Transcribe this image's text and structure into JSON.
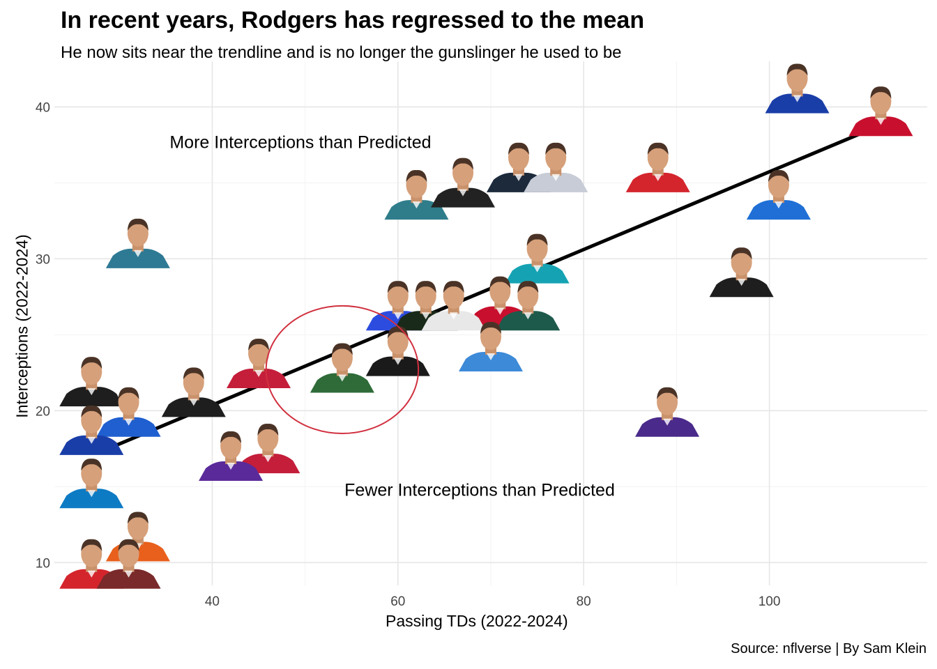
{
  "header": {
    "title": "In recent years, Rodgers has regressed to the mean",
    "subtitle": "He now sits near the trendline and is no longer the gunslinger he used to be"
  },
  "caption": "Source: nflverse | By Sam Klein",
  "chart_data": {
    "type": "scatter",
    "title": "In recent years, Rodgers has regressed to the mean",
    "subtitle": "He now sits near the trendline and is no longer the gunslinger he used to be",
    "xlabel": "Passing TDs (2022-2024)",
    "ylabel": "Interceptions (2022-2024)",
    "xlim": [
      23,
      117
    ],
    "ylim": [
      8.5,
      43
    ],
    "x_ticks": [
      40,
      60,
      80,
      100
    ],
    "y_ticks": [
      10,
      20,
      30,
      40
    ],
    "grid": true,
    "marker": "player headshot images",
    "points": [
      {
        "x": 103,
        "y": 40.5,
        "jersey": "#1a3ea8",
        "highlight": false
      },
      {
        "x": 112,
        "y": 39.0,
        "jersey": "#c8102e",
        "highlight": false
      },
      {
        "x": 88,
        "y": 35.3,
        "jersey": "#d4252d",
        "highlight": false
      },
      {
        "x": 101,
        "y": 33.5,
        "jersey": "#1f6fd6",
        "highlight": false
      },
      {
        "x": 62,
        "y": 33.5,
        "jersey": "#2f7d8a",
        "highlight": false
      },
      {
        "x": 67,
        "y": 34.3,
        "jersey": "#222222",
        "highlight": false
      },
      {
        "x": 73,
        "y": 35.3,
        "jersey": "#1c2a3c",
        "highlight": false
      },
      {
        "x": 77,
        "y": 35.3,
        "jersey": "#c8ccd6",
        "highlight": false
      },
      {
        "x": 32,
        "y": 30.3,
        "jersey": "#2e7a94",
        "highlight": false
      },
      {
        "x": 97,
        "y": 28.4,
        "jersey": "#1e1e1e",
        "highlight": false
      },
      {
        "x": 75,
        "y": 29.3,
        "jersey": "#15a3b4",
        "highlight": false
      },
      {
        "x": 71,
        "y": 26.5,
        "jersey": "#c8102e",
        "highlight": false
      },
      {
        "x": 74,
        "y": 26.2,
        "jersey": "#1e5a4c",
        "highlight": false
      },
      {
        "x": 60,
        "y": 26.2,
        "jersey": "#2c4ce0",
        "highlight": false
      },
      {
        "x": 63,
        "y": 26.2,
        "jersey": "#1a2a1a",
        "highlight": false
      },
      {
        "x": 66,
        "y": 26.2,
        "jersey": "#e8e8e8",
        "highlight": false
      },
      {
        "x": 70,
        "y": 23.5,
        "jersey": "#3d8ad8",
        "highlight": false
      },
      {
        "x": 54,
        "y": 22.1,
        "jersey": "#2e6b38",
        "highlight": true
      },
      {
        "x": 60,
        "y": 23.2,
        "jersey": "#1a1a1a",
        "highlight": false
      },
      {
        "x": 45,
        "y": 22.4,
        "jersey": "#c41e3a",
        "highlight": false
      },
      {
        "x": 38,
        "y": 20.5,
        "jersey": "#1e1e1e",
        "highlight": false
      },
      {
        "x": 27,
        "y": 21.2,
        "jersey": "#1e1e1e",
        "highlight": false
      },
      {
        "x": 31,
        "y": 19.2,
        "jersey": "#1f5fd0",
        "highlight": false
      },
      {
        "x": 27,
        "y": 18.0,
        "jersey": "#1a3ea8",
        "highlight": false
      },
      {
        "x": 46,
        "y": 16.8,
        "jersey": "#c41e3a",
        "highlight": false
      },
      {
        "x": 42,
        "y": 16.3,
        "jersey": "#5a2a9a",
        "highlight": false
      },
      {
        "x": 89,
        "y": 19.2,
        "jersey": "#4a2a8a",
        "highlight": false
      },
      {
        "x": 27,
        "y": 14.5,
        "jersey": "#0d7bc4",
        "highlight": false
      },
      {
        "x": 32,
        "y": 11.0,
        "jersey": "#e8601c",
        "highlight": false
      },
      {
        "x": 27,
        "y": 9.2,
        "jersey": "#d4252d",
        "highlight": false
      },
      {
        "x": 31,
        "y": 9.2,
        "jersey": "#7a2a2a",
        "highlight": false
      }
    ],
    "trendline": {
      "x": [
        28,
        112
      ],
      "y": [
        17.3,
        38.8
      ],
      "color": "#000000"
    },
    "highlight_ellipse": {
      "cx": 54,
      "cy": 22.7,
      "rx": 8.2,
      "ry": 4.2,
      "color": "#d1303f"
    },
    "annotations": [
      {
        "text": "More Interceptions than Predicted",
        "x": 49.5,
        "y": 37.7
      },
      {
        "text": "Fewer Interceptions than Predicted",
        "x": 68.8,
        "y": 14.8
      }
    ]
  }
}
